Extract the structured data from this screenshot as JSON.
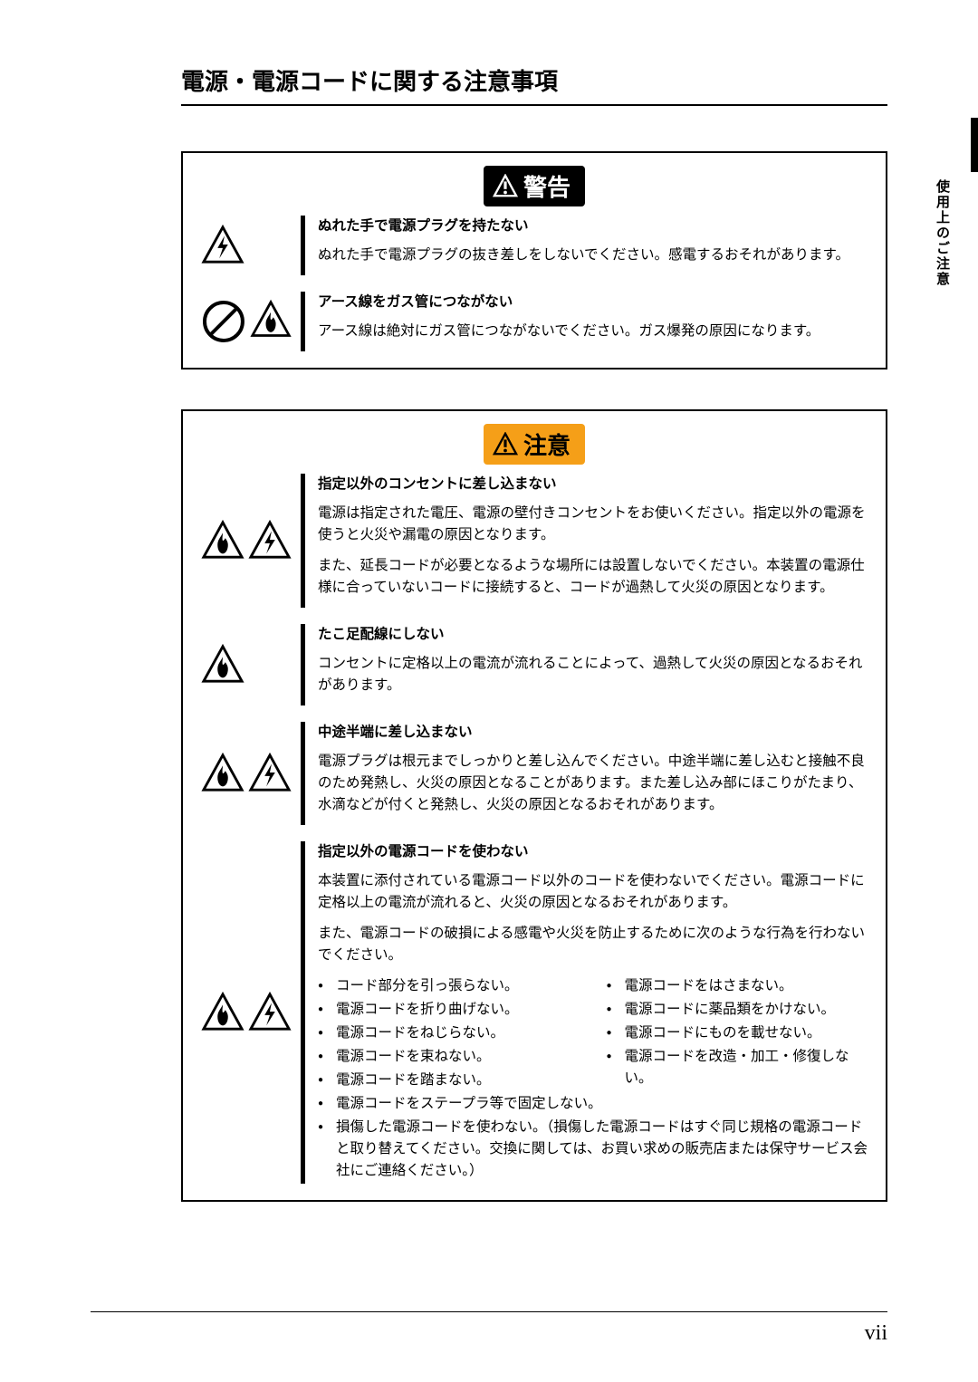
{
  "page": {
    "title": "電源・電源コードに関する注意事項",
    "sideTab": "使用上のご注意",
    "pageNumber": "vii"
  },
  "warning": {
    "label": "警告",
    "items": [
      {
        "heading": "ぬれた手で電源プラグを持たない",
        "body": "ぬれた手で電源プラグの抜き差しをしないでください。感電するおそれがあります。"
      },
      {
        "heading": "アース線をガス管につながない",
        "body": "アース線は絶対にガス管につながないでください。ガス爆発の原因になります。"
      }
    ]
  },
  "caution": {
    "label": "注意",
    "items": [
      {
        "heading": "指定以外のコンセントに差し込まない",
        "p1": "電源は指定された電圧、電源の壁付きコンセントをお使いください。指定以外の電源を使うと火災や漏電の原因となります。",
        "p2": "また、延長コードが必要となるような場所には設置しないでください。本装置の電源仕様に合っていないコードに接続すると、コードが過熱して火災の原因となります。"
      },
      {
        "heading": "たこ足配線にしない",
        "body": "コンセントに定格以上の電流が流れることによって、過熱して火災の原因となるおそれがあります。"
      },
      {
        "heading": "中途半端に差し込まない",
        "body": "電源プラグは根元までしっかりと差し込んでください。中途半端に差し込むと接触不良のため発熱し、火災の原因となることがあります。また差し込み部にほこりがたまり、水滴などが付くと発熱し、火災の原因となるおそれがあります。"
      },
      {
        "heading": "指定以外の電源コードを使わない",
        "p1": "本装置に添付されている電源コード以外のコードを使わないでください。電源コードに定格以上の電流が流れると、火災の原因となるおそれがあります。",
        "p2": "また、電源コードの破損による感電や火災を防止するために次のような行為を行わないでください。",
        "left": [
          "コード部分を引っ張らない。",
          "電源コードを折り曲げない。",
          "電源コードをねじらない。",
          "電源コードを束ねない。",
          "電源コードを踏まない。"
        ],
        "right": [
          "電源コードをはさまない。",
          "電源コードに薬品類をかけない。",
          "電源コードにものを載せない。",
          "電源コードを改造・加工・修復しない。"
        ],
        "full": [
          "電源コードをステープラ等で固定しない。",
          "損傷した電源コードを使わない。（損傷した電源コードはすぐ同じ規格の電源コードと取り替えてください。交換に関しては、お買い求めの販売店または保守サービス会社にご連絡ください。）"
        ]
      }
    ]
  }
}
